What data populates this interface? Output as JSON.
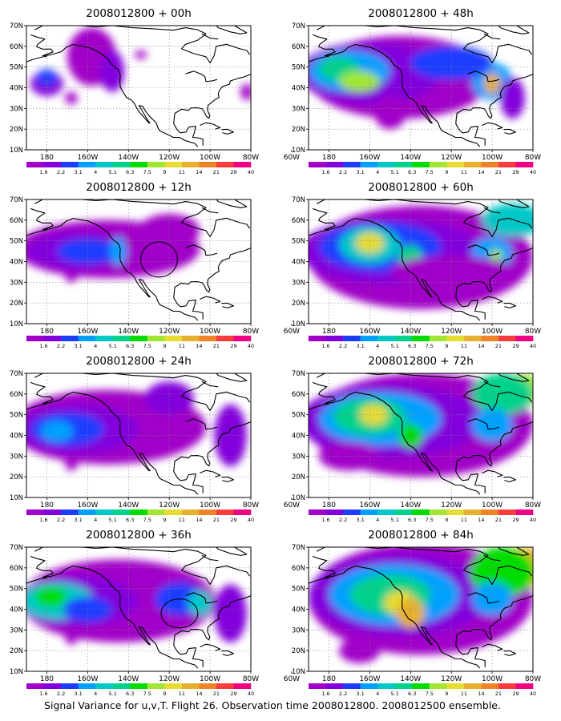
{
  "figure": {
    "caption": "Signal Variance for u,v,T. Flight 26. Observation time 2008012800. 2008012500 ensemble."
  },
  "axes": {
    "lon_ticks": [
      "180",
      "160W",
      "140W",
      "120W",
      "100W",
      "80W",
      "60W"
    ],
    "lat_ticks": [
      "10N",
      "20N",
      "30N",
      "40N",
      "50N",
      "60N",
      "70N"
    ]
  },
  "colorbar": {
    "labels": [
      "1.6",
      "2.2",
      "3.1",
      "4",
      "5.1",
      "6.3",
      "7.5",
      "9",
      "11",
      "14",
      "21",
      "29",
      "40"
    ],
    "colors": [
      "#a000c8",
      "#8200dc",
      "#1e3cff",
      "#00a0ff",
      "#00c8c8",
      "#00d28c",
      "#00dc00",
      "#a0e632",
      "#e6dc32",
      "#e6af2d",
      "#f08228",
      "#fa3c3c",
      "#f00082"
    ]
  },
  "panels": [
    {
      "title": "2008012800 + 00h"
    },
    {
      "title": "2008012800 + 48h"
    },
    {
      "title": "2008012800 + 12h"
    },
    {
      "title": "2008012800 + 60h"
    },
    {
      "title": "2008012800 + 24h"
    },
    {
      "title": "2008012800 + 72h"
    },
    {
      "title": "2008012800 + 36h"
    },
    {
      "title": "2008012800 + 84h"
    }
  ]
}
